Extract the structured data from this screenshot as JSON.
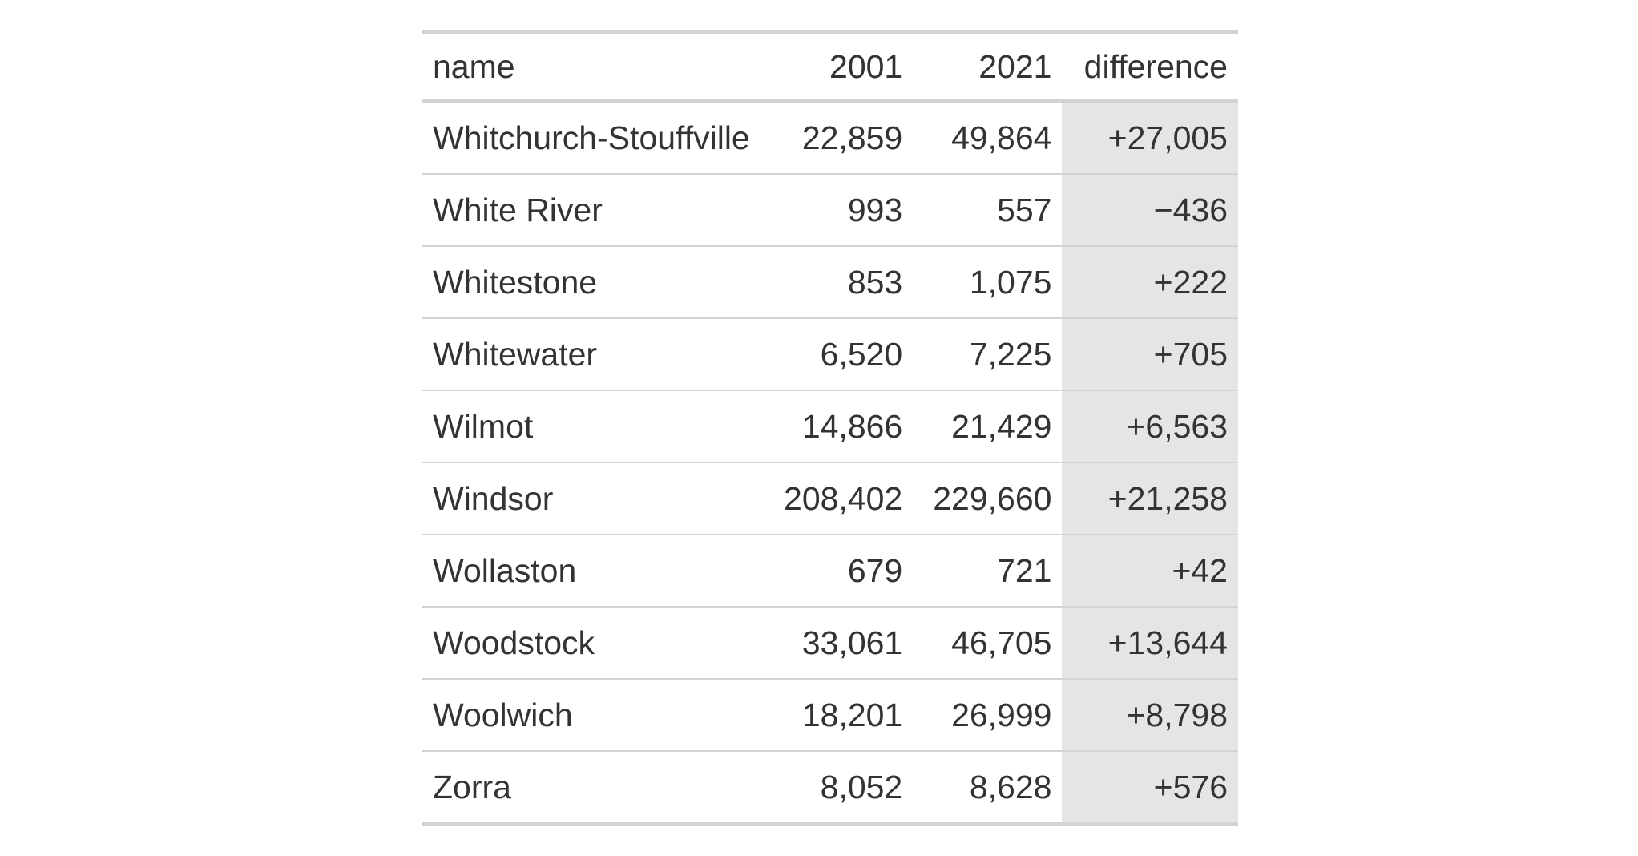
{
  "table": {
    "columns": [
      "name",
      "2001",
      "2021",
      "difference"
    ],
    "rows": [
      {
        "name": "Whitchurch-Stouffville",
        "y2001": "22,859",
        "y2021": "49,864",
        "difference": "+27,005"
      },
      {
        "name": "White River",
        "y2001": "993",
        "y2021": "557",
        "difference": "−436"
      },
      {
        "name": "Whitestone",
        "y2001": "853",
        "y2021": "1,075",
        "difference": "+222"
      },
      {
        "name": "Whitewater",
        "y2001": "6,520",
        "y2021": "7,225",
        "difference": "+705"
      },
      {
        "name": "Wilmot",
        "y2001": "14,866",
        "y2021": "21,429",
        "difference": "+6,563"
      },
      {
        "name": "Windsor",
        "y2001": "208,402",
        "y2021": "229,660",
        "difference": "+21,258"
      },
      {
        "name": "Wollaston",
        "y2001": "679",
        "y2021": "721",
        "difference": "+42"
      },
      {
        "name": "Woodstock",
        "y2001": "33,061",
        "y2021": "46,705",
        "difference": "+13,644"
      },
      {
        "name": "Woolwich",
        "y2001": "18,201",
        "y2021": "26,999",
        "difference": "+8,798"
      },
      {
        "name": "Zorra",
        "y2001": "8,052",
        "y2021": "8,628",
        "difference": "+576"
      }
    ]
  },
  "colors": {
    "highlight_column_bg": "#e5e5e5",
    "rule": "#d3d3d3",
    "text": "#333333"
  }
}
